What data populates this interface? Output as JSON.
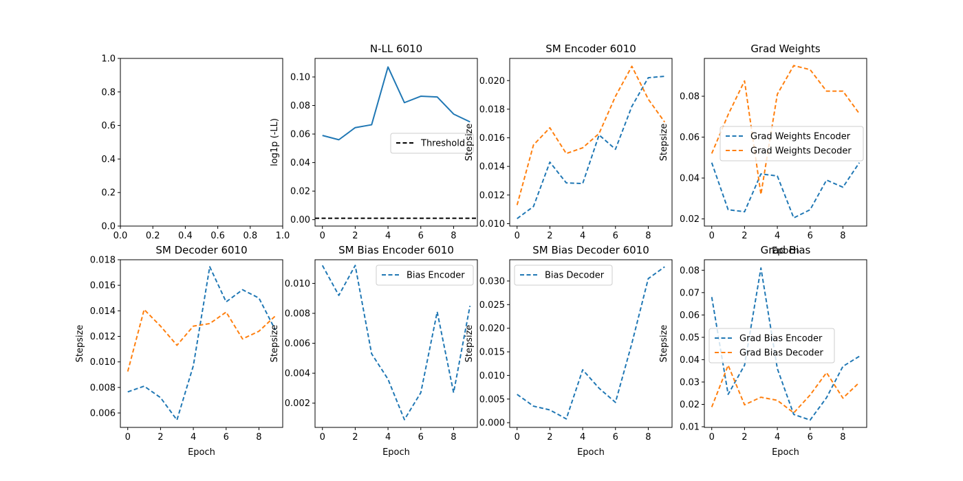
{
  "figure": {
    "background": "#ffffff"
  },
  "colors": {
    "blue": "#1f77b4",
    "orange": "#ff7f0e",
    "black": "#000000"
  },
  "chart_data": [
    {
      "type": "line",
      "title": "",
      "xlabel": "",
      "ylabel": "",
      "xlim": [
        0,
        1
      ],
      "ylim": [
        0,
        1
      ],
      "xticks": [
        0.0,
        0.2,
        0.4,
        0.6,
        0.8,
        1.0
      ],
      "yticks": [
        0.0,
        0.2,
        0.4,
        0.6,
        0.8,
        1.0
      ],
      "xtick_labels": [
        "0.0",
        "0.2",
        "0.4",
        "0.6",
        "0.8",
        "1.0"
      ],
      "ytick_labels": [
        "0.0",
        "0.2",
        "0.4",
        "0.6",
        "0.8",
        "1.0"
      ],
      "series": [],
      "legend": null
    },
    {
      "type": "line",
      "title": "N-LL 6010",
      "xlabel": "",
      "ylabel": "log1p (-LL)",
      "xlim": [
        -0.45,
        9.45
      ],
      "ylim": [
        -0.0045,
        0.113
      ],
      "xticks": [
        0,
        2,
        4,
        6,
        8
      ],
      "yticks": [
        0.0,
        0.02,
        0.04,
        0.06,
        0.08,
        0.1
      ],
      "xtick_labels": [
        "0",
        "2",
        "4",
        "6",
        "8"
      ],
      "ytick_labels": [
        "0.00",
        "0.02",
        "0.04",
        "0.06",
        "0.08",
        "0.10"
      ],
      "series": [
        {
          "color": "#1f77b4",
          "dash": "solid",
          "x": [
            0,
            1,
            2,
            3,
            4,
            5,
            6,
            7,
            8,
            9
          ],
          "y": [
            0.059,
            0.056,
            0.0645,
            0.0665,
            0.107,
            0.082,
            0.0865,
            0.086,
            0.074,
            0.0685
          ]
        },
        {
          "name": "Threshold",
          "color": "#000000",
          "dash": "dashed",
          "hline": 0.001
        }
      ],
      "legend": {
        "placement": "center-right",
        "entries": [
          "Threshold"
        ]
      }
    },
    {
      "type": "line",
      "title": "SM Encoder 6010",
      "xlabel": "",
      "ylabel": "Stepsize",
      "xlim": [
        -0.45,
        9.45
      ],
      "ylim": [
        0.00983,
        0.02155
      ],
      "xticks": [
        0,
        2,
        4,
        6,
        8
      ],
      "yticks": [
        0.01,
        0.012,
        0.014,
        0.016,
        0.018,
        0.02
      ],
      "xtick_labels": [
        "0",
        "2",
        "4",
        "6",
        "8"
      ],
      "ytick_labels": [
        "0.010",
        "0.012",
        "0.014",
        "0.016",
        "0.018",
        "0.020"
      ],
      "series": [
        {
          "color": "#1f77b4",
          "dash": "dashed",
          "x": [
            0,
            1,
            2,
            3,
            4,
            5,
            6,
            7,
            8,
            9
          ],
          "y": [
            0.01035,
            0.0112,
            0.0143,
            0.01285,
            0.0128,
            0.0162,
            0.0152,
            0.0182,
            0.0202,
            0.0203
          ]
        },
        {
          "color": "#ff7f0e",
          "dash": "dashed",
          "x": [
            0,
            1,
            2,
            3,
            4,
            5,
            6,
            7,
            8,
            9
          ],
          "y": [
            0.0113,
            0.0155,
            0.0167,
            0.0149,
            0.0153,
            0.0163,
            0.0189,
            0.021,
            0.0187,
            0.0171
          ]
        }
      ],
      "legend": null
    },
    {
      "type": "line",
      "title": "Grad Weights",
      "xlabel": "Epoch",
      "ylabel": "Stepsize",
      "xlim": [
        -0.45,
        9.45
      ],
      "ylim": [
        0.0165,
        0.0985
      ],
      "xticks": [
        0,
        2,
        4,
        6,
        8
      ],
      "yticks": [
        0.02,
        0.04,
        0.06,
        0.08
      ],
      "xtick_labels": [
        "0",
        "2",
        "4",
        "6",
        "8"
      ],
      "ytick_labels": [
        "0.02",
        "0.04",
        "0.06",
        "0.08"
      ],
      "series": [
        {
          "name": "Grad Weights Encoder",
          "color": "#1f77b4",
          "dash": "dashed",
          "x": [
            0,
            1,
            2,
            3,
            4,
            5,
            6,
            7,
            8,
            9
          ],
          "y": [
            0.0475,
            0.0245,
            0.0235,
            0.042,
            0.041,
            0.0205,
            0.0245,
            0.039,
            0.0355,
            0.0475
          ]
        },
        {
          "name": "Grad Weights Decoder",
          "color": "#ff7f0e",
          "dash": "dashed",
          "x": [
            0,
            1,
            2,
            3,
            4,
            5,
            6,
            7,
            8,
            9
          ],
          "y": [
            0.052,
            0.071,
            0.0875,
            0.032,
            0.081,
            0.095,
            0.093,
            0.0825,
            0.0825,
            0.0715
          ]
        }
      ],
      "legend": {
        "placement": "center-right",
        "entries": [
          "Grad Weights Encoder",
          "Grad Weights Decoder"
        ]
      }
    },
    {
      "type": "line",
      "title": "SM Decoder 6010",
      "xlabel": "Epoch",
      "ylabel": "Stepsize",
      "xlim": [
        -0.45,
        9.45
      ],
      "ylim": [
        0.00487,
        0.018
      ],
      "xticks": [
        0,
        2,
        4,
        6,
        8
      ],
      "yticks": [
        0.006,
        0.008,
        0.01,
        0.012,
        0.014,
        0.016,
        0.018
      ],
      "xtick_labels": [
        "0",
        "2",
        "4",
        "6",
        "8"
      ],
      "ytick_labels": [
        "0.006",
        "0.008",
        "0.010",
        "0.012",
        "0.014",
        "0.016",
        "0.018"
      ],
      "series": [
        {
          "color": "#1f77b4",
          "dash": "dashed",
          "x": [
            0,
            1,
            2,
            3,
            4,
            5,
            6,
            7,
            8,
            9
          ],
          "y": [
            0.00765,
            0.0081,
            0.0072,
            0.00545,
            0.0097,
            0.01745,
            0.0147,
            0.01565,
            0.015,
            0.0125
          ]
        },
        {
          "color": "#ff7f0e",
          "dash": "dashed",
          "x": [
            0,
            1,
            2,
            3,
            4,
            5,
            6,
            7,
            8,
            9
          ],
          "y": [
            0.00925,
            0.0141,
            0.0128,
            0.0113,
            0.0128,
            0.013,
            0.0139,
            0.0118,
            0.0124,
            0.0136
          ]
        }
      ],
      "legend": null
    },
    {
      "type": "line",
      "title": "SM Bias Encoder 6010",
      "xlabel": "Epoch",
      "ylabel": "Stepsize",
      "xlim": [
        -0.45,
        9.45
      ],
      "ylim": [
        0.00038,
        0.01158
      ],
      "xticks": [
        0,
        2,
        4,
        6,
        8
      ],
      "yticks": [
        0.002,
        0.004,
        0.006,
        0.008,
        0.01
      ],
      "xtick_labels": [
        "0",
        "2",
        "4",
        "6",
        "8"
      ],
      "ytick_labels": [
        "0.002",
        "0.004",
        "0.006",
        "0.008",
        "0.010"
      ],
      "series": [
        {
          "name": "Bias Encoder",
          "color": "#1f77b4",
          "dash": "dashed",
          "x": [
            0,
            1,
            2,
            3,
            4,
            5,
            6,
            7,
            8,
            9
          ],
          "y": [
            0.0112,
            0.0092,
            0.0112,
            0.0053,
            0.0036,
            0.0009,
            0.0027,
            0.0081,
            0.0027,
            0.0085
          ]
        }
      ],
      "legend": {
        "placement": "upper-right",
        "entries": [
          "Bias Encoder"
        ]
      }
    },
    {
      "type": "line",
      "title": "SM Bias Decoder 6010",
      "xlabel": "Epoch",
      "ylabel": "Stepsize",
      "xlim": [
        -0.45,
        9.45
      ],
      "ylim": [
        -0.001,
        0.0345
      ],
      "xticks": [
        0,
        2,
        4,
        6,
        8
      ],
      "yticks": [
        0.0,
        0.005,
        0.01,
        0.015,
        0.02,
        0.025,
        0.03
      ],
      "xtick_labels": [
        "0",
        "2",
        "4",
        "6",
        "8"
      ],
      "ytick_labels": [
        "0.000",
        "0.005",
        "0.010",
        "0.015",
        "0.020",
        "0.025",
        "0.030"
      ],
      "series": [
        {
          "name": "Bias Decoder",
          "color": "#1f77b4",
          "dash": "dashed",
          "x": [
            0,
            1,
            2,
            3,
            4,
            5,
            6,
            7,
            8,
            9
          ],
          "y": [
            0.006,
            0.0035,
            0.0027,
            0.0008,
            0.0112,
            0.0073,
            0.0043,
            0.0168,
            0.0305,
            0.033
          ]
        }
      ],
      "legend": {
        "placement": "upper-left",
        "entries": [
          "Bias Decoder"
        ]
      }
    },
    {
      "type": "line",
      "title": "Grad Bias",
      "xlabel": "Epoch",
      "ylabel": "Stepsize",
      "xlim": [
        -0.45,
        9.45
      ],
      "ylim": [
        0.0097,
        0.0847
      ],
      "xticks": [
        0,
        2,
        4,
        6,
        8
      ],
      "yticks": [
        0.01,
        0.02,
        0.03,
        0.04,
        0.05,
        0.06,
        0.07,
        0.08
      ],
      "xtick_labels": [
        "0",
        "2",
        "4",
        "6",
        "8"
      ],
      "ytick_labels": [
        "0.01",
        "0.02",
        "0.03",
        "0.04",
        "0.05",
        "0.06",
        "0.07",
        "0.08"
      ],
      "series": [
        {
          "name": "Grad Bias Encoder",
          "color": "#1f77b4",
          "dash": "dashed",
          "x": [
            0,
            1,
            2,
            3,
            4,
            5,
            6,
            7,
            8,
            9
          ],
          "y": [
            0.068,
            0.0245,
            0.0375,
            0.081,
            0.036,
            0.0155,
            0.013,
            0.023,
            0.037,
            0.0415
          ]
        },
        {
          "name": "Grad Bias Decoder",
          "color": "#ff7f0e",
          "dash": "dashed",
          "x": [
            0,
            1,
            2,
            3,
            4,
            5,
            6,
            7,
            8,
            9
          ],
          "y": [
            0.0188,
            0.0375,
            0.0198,
            0.0232,
            0.0218,
            0.0162,
            0.0242,
            0.0342,
            0.0228,
            0.0298
          ]
        }
      ],
      "legend": {
        "placement": "center-left",
        "entries": [
          "Grad Bias Encoder",
          "Grad Bias Decoder"
        ]
      }
    }
  ]
}
